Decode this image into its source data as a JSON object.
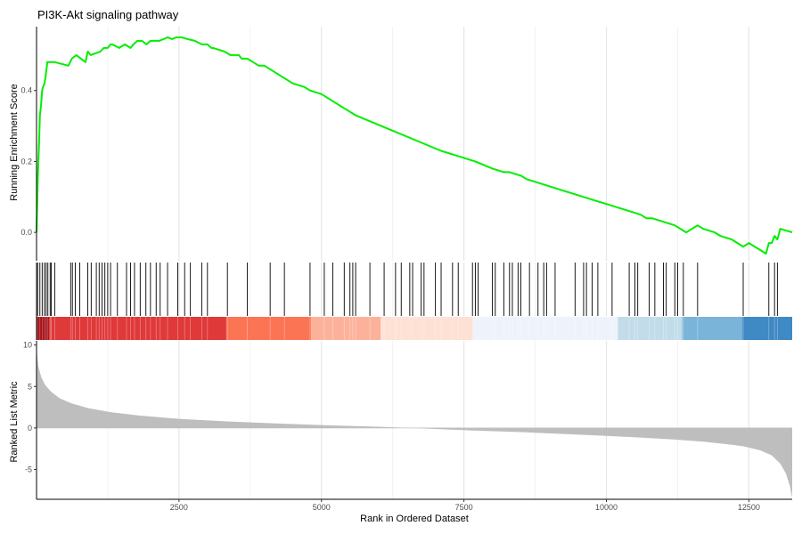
{
  "chart_data": {
    "type": "line",
    "title": "PI3K-Akt signaling pathway",
    "xlabel": "Rank in Ordered Dataset",
    "xlim": [
      1,
      13260
    ],
    "x_ticks": [
      2500,
      5000,
      7500,
      10000,
      12500
    ],
    "grid": "vertical-major-minor",
    "panels": [
      {
        "name": "running-enrichment-score",
        "ylabel": "Running Enrichment Score",
        "ylim": [
          -0.08,
          0.58
        ],
        "y_ticks": [
          "0.0",
          "0.2",
          "0.4"
        ],
        "line_color": "#00ee00",
        "series": [
          {
            "x": [
              1,
              25,
              45,
              60,
              80,
              100,
              115,
              140,
              160,
              190,
              240,
              320,
              560,
              620,
              700,
              860,
              900,
              950,
              1120,
              1180,
              1250,
              1300,
              1330,
              1450,
              1550,
              1650,
              1700,
              1770,
              1850,
              1930,
              2000,
              2080,
              2150,
              2230,
              2300,
              2380,
              2450,
              2550,
              2650,
              2780,
              2900,
              3000,
              3070,
              3100,
              3300,
              3400,
              3550,
              3600,
              3700,
              3800,
              3900,
              4000,
              4100,
              4300,
              4500,
              4700,
              4800,
              5000,
              5100,
              5300,
              5400,
              5500,
              5600,
              5900,
              6200,
              6500,
              6800,
              7100,
              7500,
              7700,
              8000,
              8200,
              8300,
              8500,
              8600,
              8800,
              9000,
              9200,
              9400,
              9600,
              9800,
              10000,
              10200,
              10400,
              10600,
              10700,
              10800,
              11000,
              11200,
              11300,
              11400,
              11600,
              11700,
              11900,
              12000,
              12200,
              12400,
              12500,
              12700,
              12800,
              12850,
              12900,
              12950,
              13000,
              13050,
              13260
            ],
            "y": [
              0.0,
              0.16,
              0.25,
              0.33,
              0.36,
              0.4,
              0.41,
              0.42,
              0.44,
              0.48,
              0.48,
              0.48,
              0.47,
              0.49,
              0.5,
              0.48,
              0.51,
              0.5,
              0.51,
              0.52,
              0.52,
              0.53,
              0.53,
              0.52,
              0.53,
              0.52,
              0.53,
              0.54,
              0.54,
              0.53,
              0.54,
              0.54,
              0.54,
              0.545,
              0.55,
              0.545,
              0.55,
              0.55,
              0.545,
              0.54,
              0.53,
              0.53,
              0.52,
              0.52,
              0.51,
              0.5,
              0.5,
              0.49,
              0.49,
              0.48,
              0.47,
              0.47,
              0.46,
              0.44,
              0.42,
              0.41,
              0.4,
              0.39,
              0.38,
              0.36,
              0.35,
              0.34,
              0.33,
              0.31,
              0.29,
              0.27,
              0.25,
              0.23,
              0.21,
              0.2,
              0.18,
              0.17,
              0.17,
              0.16,
              0.15,
              0.14,
              0.13,
              0.12,
              0.11,
              0.1,
              0.09,
              0.08,
              0.07,
              0.06,
              0.05,
              0.04,
              0.04,
              0.03,
              0.02,
              0.01,
              0.0,
              0.02,
              0.01,
              0.0,
              -0.01,
              -0.02,
              -0.04,
              -0.03,
              -0.05,
              -0.06,
              -0.03,
              -0.03,
              -0.01,
              -0.02,
              0.01,
              0.0
            ]
          }
        ]
      },
      {
        "name": "gene-hits",
        "hit_positions": [
          20,
          60,
          100,
          140,
          170,
          200,
          240,
          260,
          320,
          600,
          630,
          680,
          760,
          900,
          960,
          1050,
          1100,
          1150,
          1200,
          1250,
          1300,
          1420,
          1580,
          1650,
          1720,
          1820,
          1920,
          2000,
          2100,
          2170,
          2300,
          2480,
          2600,
          2700,
          2900,
          3000,
          3350,
          3700,
          4100,
          4350,
          4800,
          5050,
          5200,
          5400,
          5500,
          5550,
          5600,
          5850,
          6100,
          6300,
          6400,
          6550,
          6600,
          6750,
          6800,
          7000,
          7100,
          7300,
          7400,
          7650,
          7700,
          7750,
          8000,
          8050,
          8200,
          8300,
          8350,
          8450,
          8500,
          8650,
          8800,
          8900,
          8950,
          9100,
          9450,
          9600,
          9650,
          9750,
          9850,
          10100,
          10400,
          10500,
          10550,
          10750,
          10850,
          11000,
          11050,
          11200,
          11250,
          11350,
          11600,
          12400,
          12850,
          12950,
          13000
        ]
      },
      {
        "name": "ranked-list-metric",
        "ylabel": "Ranked List Metric",
        "ylim": [
          -8.6,
          10.5
        ],
        "y_ticks": [
          "-5",
          "0",
          "5",
          "10"
        ],
        "fill_color": "#bebebe",
        "series": [
          {
            "x": [
              1,
              30,
              80,
              150,
              250,
              400,
              600,
              900,
              1300,
              1800,
              2500,
              3300,
              4000,
              5000,
              6000,
              6600,
              7000,
              7600,
              8500,
              9300,
              10000,
              10600,
              11200,
              11700,
              12100,
              12400,
              12700,
              12900,
              13050,
              13150,
              13220,
              13260
            ],
            "y": [
              9.5,
              7.5,
              6.2,
              5.2,
              4.4,
              3.6,
              3.0,
              2.4,
              1.9,
              1.5,
              1.1,
              0.8,
              0.6,
              0.35,
              0.15,
              0.0,
              -0.12,
              -0.3,
              -0.5,
              -0.75,
              -0.95,
              -1.15,
              -1.4,
              -1.65,
              -1.95,
              -2.2,
              -2.7,
              -3.3,
              -4.3,
              -5.5,
              -7.0,
              -8.4
            ]
          }
        ]
      }
    ],
    "color_bar": [
      {
        "from": 1,
        "to": 220,
        "color": "#a50f15"
      },
      {
        "from": 220,
        "to": 3330,
        "color": "#e0393a"
      },
      {
        "from": 3330,
        "to": 4820,
        "color": "#fb7555"
      },
      {
        "from": 4820,
        "to": 6040,
        "color": "#fcb29a"
      },
      {
        "from": 6040,
        "to": 7660,
        "color": "#fee1d5"
      },
      {
        "from": 7660,
        "to": 10200,
        "color": "#eef3fb"
      },
      {
        "from": 10200,
        "to": 11330,
        "color": "#c2dcea"
      },
      {
        "from": 11330,
        "to": 12380,
        "color": "#7ab4d8"
      },
      {
        "from": 12380,
        "to": 13260,
        "color": "#3f89c4"
      }
    ]
  }
}
